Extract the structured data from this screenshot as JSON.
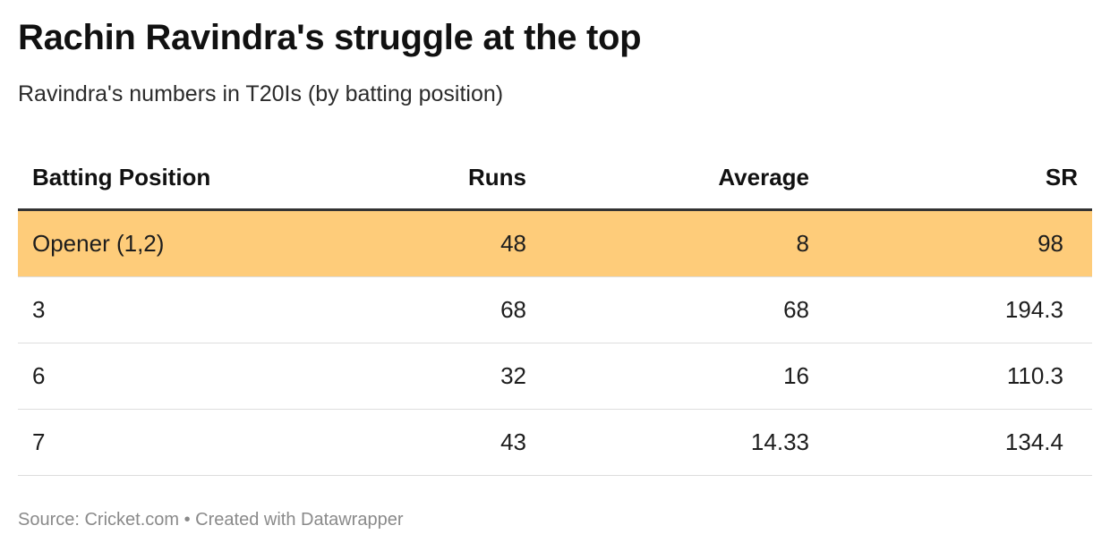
{
  "title": "Rachin Ravindra's struggle at the top",
  "subtitle": "Ravindra's numbers in T20Is (by batting position)",
  "footer": "Source: Cricket.com • Created with Datawrapper",
  "colors": {
    "highlight": "#fecc7a",
    "header_rule": "#333333",
    "row_rule": "#dddddd",
    "footer_text": "#8a8a8a"
  },
  "chart_data": {
    "type": "table",
    "columns": [
      "Batting Position",
      "Runs",
      "Average",
      "SR"
    ],
    "rows": [
      {
        "position": "Opener (1,2)",
        "runs": "48",
        "average": "8",
        "sr": "98",
        "highlighted": true
      },
      {
        "position": "3",
        "runs": "68",
        "average": "68",
        "sr": "194.3",
        "highlighted": false
      },
      {
        "position": "6",
        "runs": "32",
        "average": "16",
        "sr": "110.3",
        "highlighted": false
      },
      {
        "position": "7",
        "runs": "43",
        "average": "14.33",
        "sr": "134.4",
        "highlighted": false
      }
    ]
  }
}
